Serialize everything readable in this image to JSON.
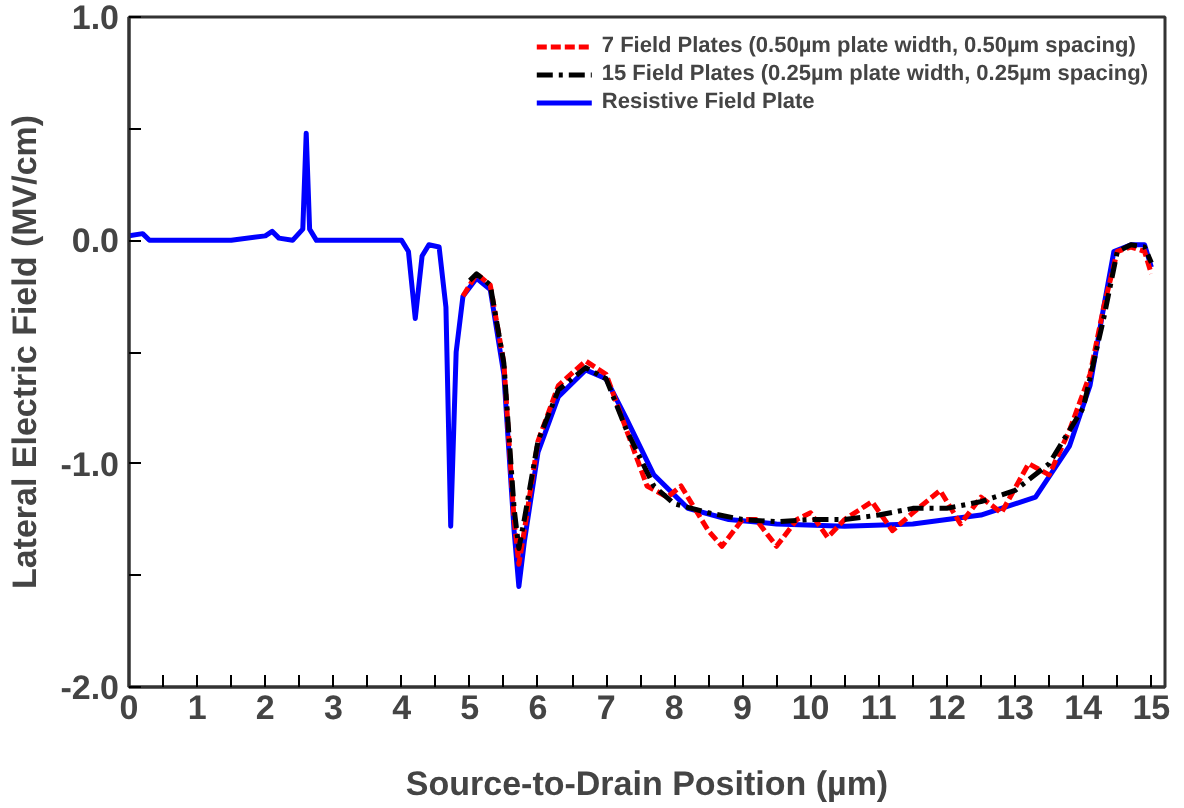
{
  "chart_data": {
    "type": "line",
    "xlabel": "Source-to-Drain Position (µm)",
    "ylabel": "Lateral Electric Field (MV/cm)",
    "xlim": [
      0,
      15.2
    ],
    "ylim": [
      -2.0,
      1.0
    ],
    "xticks": [
      0,
      1,
      2,
      3,
      4,
      5,
      6,
      7,
      8,
      9,
      10,
      11,
      12,
      13,
      14,
      15,
      {
        "value": 0.5,
        "label": null
      },
      {
        "value": 1.5,
        "label": null
      },
      {
        "value": 2.5,
        "label": null
      },
      {
        "value": 3.5,
        "label": null
      },
      {
        "value": 4.5,
        "label": null
      },
      {
        "value": 5.5,
        "label": null
      },
      {
        "value": 6.5,
        "label": null
      },
      {
        "value": 7.5,
        "label": null
      },
      {
        "value": 8.5,
        "label": null
      },
      {
        "value": 9.5,
        "label": null
      },
      {
        "value": 10.5,
        "label": null
      },
      {
        "value": 11.5,
        "label": null
      },
      {
        "value": 12.5,
        "label": null
      },
      {
        "value": 13.5,
        "label": null
      },
      {
        "value": 14.5,
        "label": null
      }
    ],
    "yticks": [
      {
        "value": 1.0,
        "label": "1.0"
      },
      {
        "value": 0,
        "label": "0.0"
      },
      {
        "value": -1.0,
        "label": "-1.0"
      },
      {
        "value": -2.0,
        "label": "-2.0"
      },
      {
        "value": 0.5,
        "label": null
      },
      {
        "value": -0.5,
        "label": null
      },
      {
        "value": -1.5,
        "label": null
      }
    ],
    "grid": false,
    "legend": "top right",
    "marker": "none",
    "series": [
      {
        "name": "7 Field Plates (0.50µm plate width, 0.50µm spacing)",
        "color": "#ff0000",
        "line_style": "dashed",
        "x": [
          4.9,
          5.1,
          5.3,
          5.5,
          5.65,
          5.72,
          5.8,
          6.0,
          6.3,
          6.7,
          7.0,
          7.3,
          7.6,
          7.9,
          8.1,
          8.5,
          8.7,
          9.0,
          9.2,
          9.5,
          9.8,
          10.0,
          10.25,
          10.5,
          10.9,
          11.2,
          11.5,
          11.9,
          12.2,
          12.5,
          12.8,
          13.2,
          13.5,
          13.8,
          14.1,
          14.3,
          14.5,
          14.7,
          14.9,
          15.0
        ],
        "values": [
          -0.25,
          -0.15,
          -0.2,
          -0.55,
          -1.25,
          -1.45,
          -1.3,
          -0.9,
          -0.65,
          -0.54,
          -0.6,
          -0.85,
          -1.1,
          -1.15,
          -1.1,
          -1.3,
          -1.37,
          -1.25,
          -1.25,
          -1.37,
          -1.25,
          -1.22,
          -1.33,
          -1.25,
          -1.17,
          -1.3,
          -1.22,
          -1.12,
          -1.27,
          -1.15,
          -1.22,
          -1.0,
          -1.05,
          -0.85,
          -0.6,
          -0.3,
          -0.05,
          -0.03,
          -0.05,
          -0.15
        ]
      },
      {
        "name": "15 Field Plates (0.25µm plate width, 0.25µm spacing)",
        "color": "#000000",
        "line_style": "dashdot",
        "x": [
          5.0,
          5.1,
          5.3,
          5.5,
          5.65,
          5.72,
          5.8,
          6.0,
          6.3,
          6.7,
          7.0,
          7.3,
          7.7,
          8.0,
          8.5,
          9.0,
          9.5,
          10.0,
          10.5,
          11.0,
          11.5,
          12.0,
          12.5,
          13.0,
          13.5,
          14.0,
          14.3,
          14.5,
          14.7,
          14.9,
          15.0
        ],
        "values": [
          -0.18,
          -0.15,
          -0.2,
          -0.55,
          -1.2,
          -1.38,
          -1.25,
          -0.9,
          -0.67,
          -0.57,
          -0.62,
          -0.85,
          -1.1,
          -1.18,
          -1.22,
          -1.25,
          -1.26,
          -1.25,
          -1.25,
          -1.23,
          -1.2,
          -1.2,
          -1.17,
          -1.12,
          -1.0,
          -0.75,
          -0.35,
          -0.05,
          -0.02,
          -0.03,
          -0.1
        ]
      },
      {
        "name": "Resistive Field Plate",
        "color": "#0000ff",
        "line_style": "solid",
        "x": [
          0.0,
          0.2,
          0.3,
          1.5,
          2.0,
          2.1,
          2.2,
          2.4,
          2.55,
          2.6,
          2.65,
          2.75,
          4.0,
          4.1,
          4.2,
          4.3,
          4.4,
          4.55,
          4.65,
          4.72,
          4.8,
          4.9,
          5.1,
          5.3,
          5.5,
          5.65,
          5.72,
          5.8,
          6.0,
          6.3,
          6.7,
          7.0,
          7.3,
          7.7,
          8.2,
          8.8,
          9.5,
          10.5,
          11.5,
          12.5,
          13.3,
          13.8,
          14.1,
          14.3,
          14.45,
          14.7,
          14.9,
          15.0
        ],
        "values": [
          0.02,
          0.03,
          0.0,
          0.0,
          0.02,
          0.04,
          0.01,
          0.0,
          0.05,
          0.48,
          0.05,
          0.0,
          0.0,
          -0.05,
          -0.35,
          -0.07,
          -0.02,
          -0.03,
          -0.3,
          -1.28,
          -0.5,
          -0.25,
          -0.17,
          -0.22,
          -0.6,
          -1.3,
          -1.55,
          -1.35,
          -0.95,
          -0.7,
          -0.58,
          -0.62,
          -0.8,
          -1.05,
          -1.2,
          -1.25,
          -1.27,
          -1.28,
          -1.27,
          -1.23,
          -1.15,
          -0.92,
          -0.65,
          -0.3,
          -0.05,
          -0.02,
          -0.02,
          -0.12
        ]
      }
    ]
  }
}
